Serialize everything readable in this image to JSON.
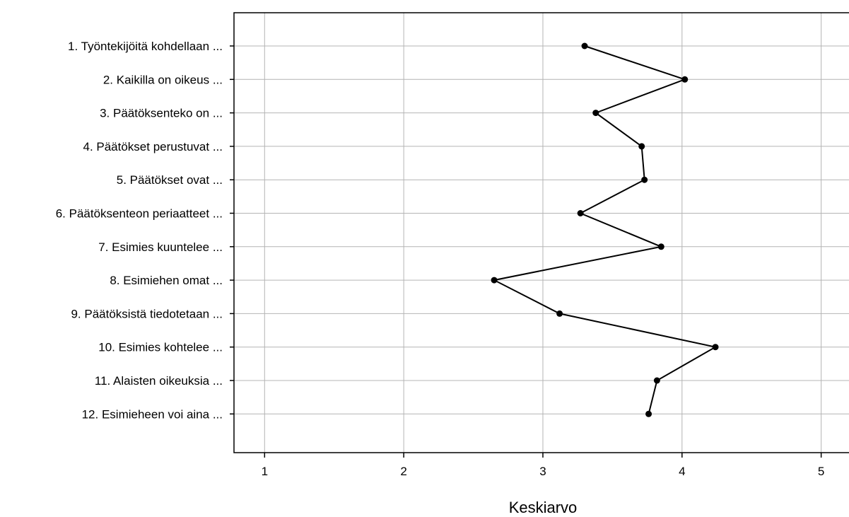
{
  "chart_data": {
    "type": "line",
    "orientation": "horizontal",
    "categories": [
      "1. Työntekijöitä kohdellaan ...",
      "2. Kaikilla on oikeus ...",
      "3. Päätöksenteko on ...",
      "4. Päätökset perustuvat ...",
      "5. Päätökset ovat ...",
      "6. Päätöksenteon periaatteet ...",
      "7. Esimies kuuntelee ...",
      "8. Esimiehen omat ...",
      "9. Päätöksistä tiedotetaan ...",
      "10. Esimies kohtelee ...",
      "11. Alaisten oikeuksia ...",
      "12. Esimieheen voi aina ..."
    ],
    "values": [
      3.3,
      4.02,
      3.38,
      3.71,
      3.73,
      3.27,
      3.85,
      2.65,
      3.12,
      4.24,
      3.82,
      3.76
    ],
    "xlabel": "Keskiarvo",
    "xlim": [
      0.78,
      5.2
    ],
    "xticks": [
      "1",
      "2",
      "3",
      "4",
      "5"
    ],
    "grid": true,
    "colors": {
      "line": "#000000",
      "marker": "#000000",
      "grid": "#b4b4b4",
      "frame": "#000000"
    }
  }
}
